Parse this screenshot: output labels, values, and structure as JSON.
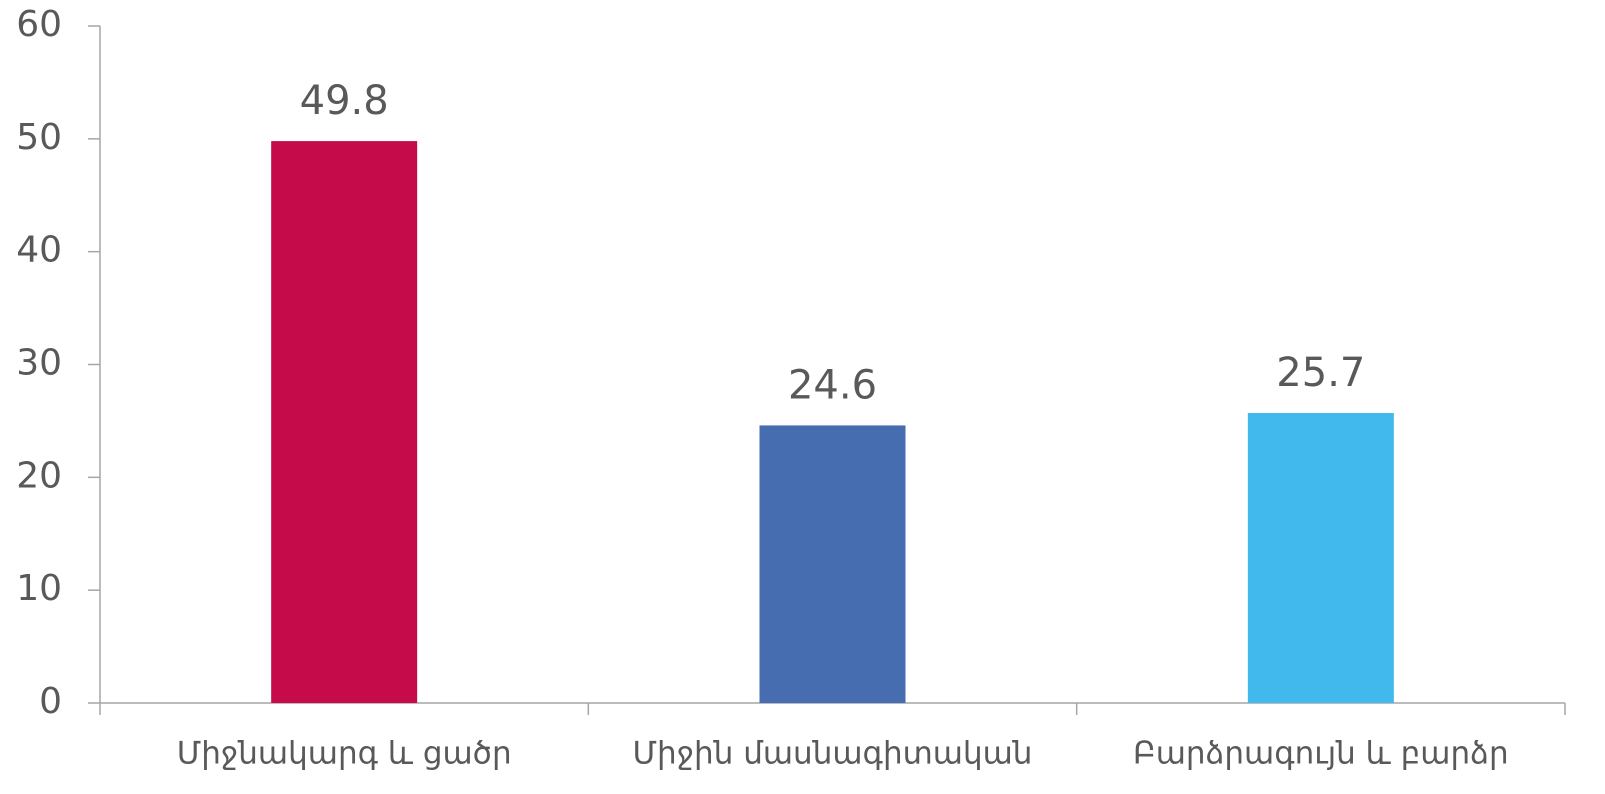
{
  "chart_data": {
    "type": "bar",
    "categories": [
      "Միջնակարգ և ցածր",
      "Միջին մասնագիտական",
      "Բարձրագույն և բարձր"
    ],
    "values": [
      49.8,
      24.6,
      25.7
    ],
    "colors": [
      "#c60b4a",
      "#476db1",
      "#41b9ec"
    ],
    "ylim": [
      0,
      60
    ],
    "yticks": [
      0,
      10,
      20,
      30,
      40,
      50,
      60
    ],
    "grid": false
  }
}
